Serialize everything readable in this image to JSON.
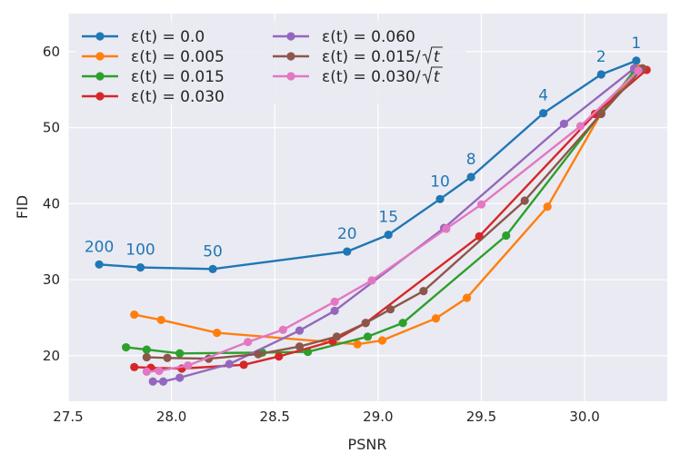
{
  "chart_data": {
    "type": "line",
    "title": "",
    "xlabel": "PSNR",
    "ylabel": "FID",
    "xlim": [
      27.5,
      30.4
    ],
    "ylim": [
      14,
      65
    ],
    "xticks": [
      27.5,
      28.0,
      28.5,
      29.0,
      29.5,
      30.0
    ],
    "xtick_labels": [
      "27.5",
      "28.0",
      "28.5",
      "29.0",
      "29.5",
      "30.0"
    ],
    "yticks": [
      20,
      30,
      40,
      50,
      60
    ],
    "ytick_labels": [
      "20",
      "30",
      "40",
      "50",
      "60"
    ],
    "grid": true,
    "legend_position": "top-left",
    "series": [
      {
        "name": "ε(t) = 0.0",
        "label_prefix": "ε(t) = ",
        "label_value": "0.0",
        "label_sqrt": false,
        "color": "#1f77b4",
        "x": [
          27.65,
          27.85,
          28.2,
          28.85,
          29.05,
          29.3,
          29.45,
          29.8,
          30.08,
          30.25
        ],
        "y": [
          32.0,
          31.6,
          31.4,
          33.7,
          35.9,
          40.6,
          43.5,
          51.9,
          57.0,
          58.8
        ]
      },
      {
        "name": "ε(t) = 0.005",
        "label_prefix": "ε(t) = ",
        "label_value": "0.005",
        "label_sqrt": false,
        "color": "#ff7f0e",
        "x": [
          27.82,
          27.95,
          28.22,
          28.9,
          29.02,
          29.28,
          29.43,
          29.82,
          30.08,
          30.26
        ],
        "y": [
          25.4,
          24.7,
          23.0,
          21.5,
          22.0,
          24.9,
          27.6,
          39.6,
          51.9,
          57.8
        ]
      },
      {
        "name": "ε(t) = 0.015",
        "label_prefix": "ε(t) = ",
        "label_value": "0.015",
        "label_sqrt": false,
        "color": "#2ca02c",
        "x": [
          27.78,
          27.88,
          28.04,
          28.44,
          28.66,
          28.95,
          29.12,
          29.62,
          30.08,
          30.24
        ],
        "y": [
          21.1,
          20.8,
          20.3,
          20.4,
          20.5,
          22.5,
          24.3,
          35.8,
          51.9,
          57.5
        ]
      },
      {
        "name": "ε(t) = 0.030",
        "label_prefix": "ε(t) = ",
        "label_value": "0.030",
        "label_sqrt": false,
        "color": "#d62728",
        "x": [
          27.82,
          27.9,
          28.05,
          28.35,
          28.52,
          28.78,
          28.94,
          29.49,
          30.05,
          30.3
        ],
        "y": [
          18.5,
          18.4,
          18.3,
          18.8,
          19.9,
          21.9,
          24.3,
          35.7,
          51.8,
          57.6
        ]
      },
      {
        "name": "ε(t) = 0.060",
        "label_prefix": "ε(t) = ",
        "label_value": "0.060",
        "label_sqrt": false,
        "color": "#9467bd",
        "x": [
          27.91,
          27.96,
          28.04,
          28.28,
          28.62,
          28.79,
          29.32,
          29.9,
          30.24
        ],
        "y": [
          16.6,
          16.6,
          17.1,
          18.9,
          23.3,
          25.9,
          36.8,
          50.5,
          57.8
        ]
      },
      {
        "name": "ε(t) = 0.015/√t",
        "label_prefix": "ε(t) = ",
        "label_value": "0.015/",
        "label_sqrt": true,
        "color": "#8c564b",
        "x": [
          27.88,
          27.98,
          28.18,
          28.42,
          28.62,
          28.8,
          28.94,
          29.06,
          29.22,
          29.71,
          30.08,
          30.28
        ],
        "y": [
          19.8,
          19.7,
          19.6,
          20.2,
          21.2,
          22.5,
          24.3,
          26.1,
          28.5,
          40.4,
          51.8,
          57.8
        ]
      },
      {
        "name": "ε(t) = 0.030/√t",
        "label_prefix": "ε(t) = ",
        "label_value": "0.030/",
        "label_sqrt": true,
        "color": "#e377c2",
        "x": [
          27.88,
          27.94,
          28.08,
          28.37,
          28.54,
          28.79,
          28.97,
          29.33,
          29.5,
          29.98,
          30.26
        ],
        "y": [
          17.9,
          18.0,
          18.7,
          21.8,
          23.4,
          27.1,
          29.9,
          36.7,
          39.9,
          50.2,
          57.5
        ]
      }
    ],
    "annotations": [
      {
        "text": "200",
        "x": 27.65,
        "y": 32.0
      },
      {
        "text": "100",
        "x": 27.85,
        "y": 31.6
      },
      {
        "text": "50",
        "x": 28.2,
        "y": 31.4
      },
      {
        "text": "20",
        "x": 28.85,
        "y": 33.7
      },
      {
        "text": "15",
        "x": 29.05,
        "y": 35.9
      },
      {
        "text": "10",
        "x": 29.3,
        "y": 40.6
      },
      {
        "text": "8",
        "x": 29.45,
        "y": 43.5
      },
      {
        "text": "4",
        "x": 29.8,
        "y": 51.9
      },
      {
        "text": "2",
        "x": 30.08,
        "y": 57.0
      },
      {
        "text": "1",
        "x": 30.25,
        "y": 58.8
      }
    ],
    "annotation_color": "#1f77b4"
  },
  "colors": {
    "plot_background": "#eaeaf2",
    "grid": "#ffffff",
    "legend_background": "#eaeaf2"
  }
}
